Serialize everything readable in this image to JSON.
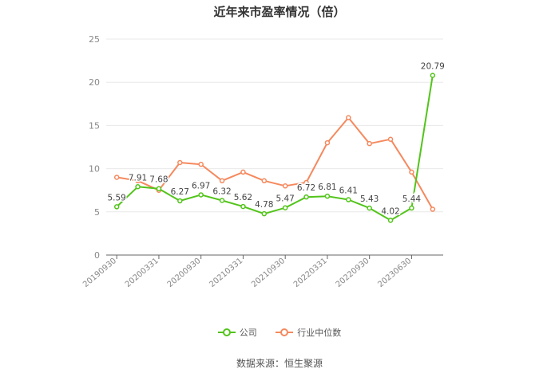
{
  "chart_data": {
    "type": "line",
    "title": "近年来市盈率情况（倍）",
    "x_tick_labels": [
      "20190930",
      "20200331",
      "20200930",
      "20210331",
      "20210930",
      "20220331",
      "20220930",
      "20230630"
    ],
    "ylim": [
      0,
      25
    ],
    "y_ticks": [
      0,
      5,
      10,
      15,
      20,
      25
    ],
    "grid": true,
    "legend_position": "bottom",
    "series": [
      {
        "name": "公司",
        "color": "#52c41a",
        "values": [
          5.59,
          7.91,
          7.68,
          6.27,
          6.97,
          6.32,
          5.62,
          4.78,
          5.47,
          6.72,
          6.81,
          6.41,
          5.43,
          4.02,
          5.44,
          20.79
        ],
        "labels": [
          "5.59",
          "7.91",
          "7.68",
          "6.27",
          "6.97",
          "6.32",
          "5.62",
          "4.78",
          "5.47",
          "6.72",
          "6.81",
          "6.41",
          "5.43",
          "4.02",
          "5.44",
          "20.79"
        ]
      },
      {
        "name": "行业中位数",
        "color": "#f5895e",
        "values": [
          9.0,
          8.6,
          7.5,
          10.7,
          10.5,
          8.6,
          9.6,
          8.6,
          8.0,
          8.4,
          13.0,
          15.9,
          12.9,
          13.4,
          9.6,
          5.3
        ]
      }
    ]
  },
  "source_text": "数据来源：恒生聚源"
}
